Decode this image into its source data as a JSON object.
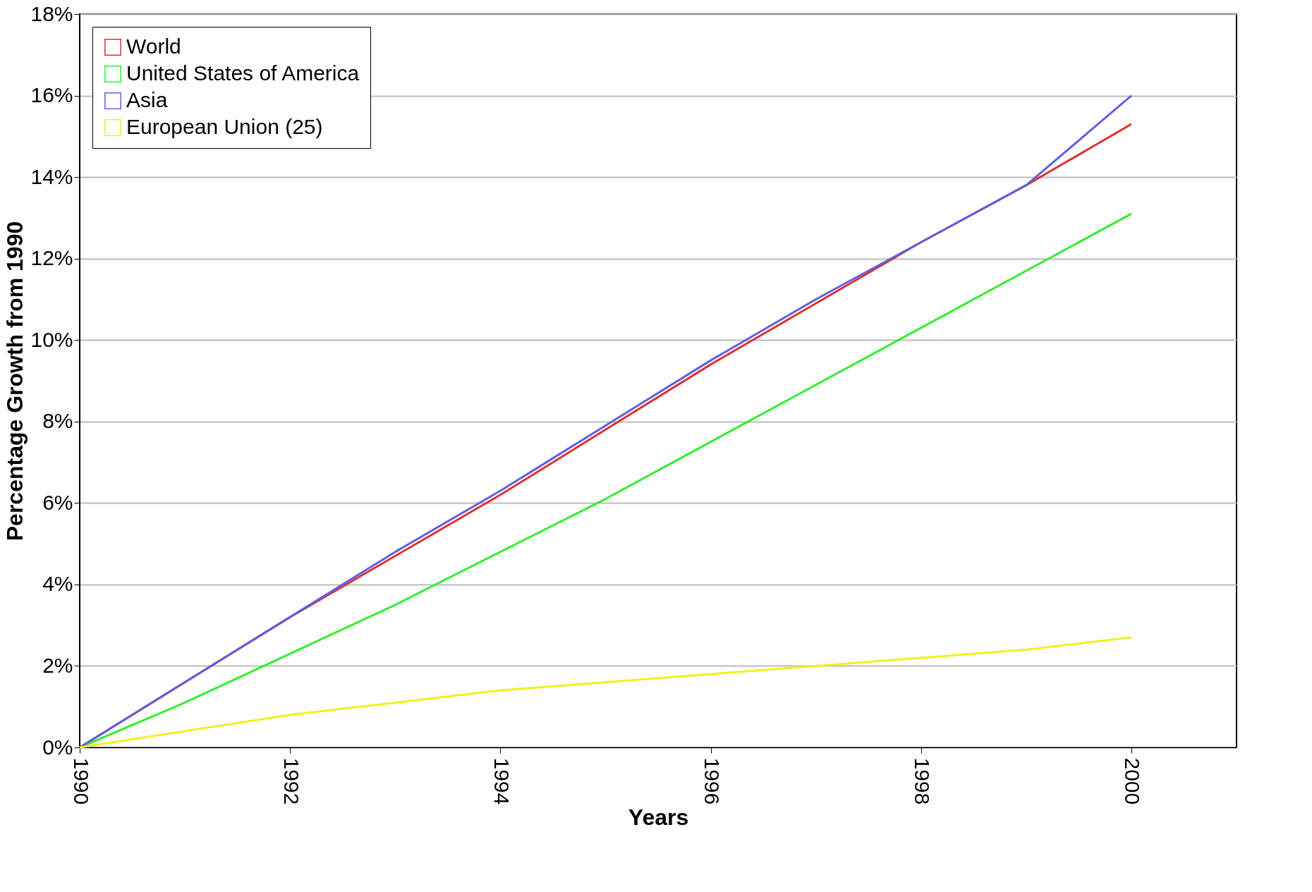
{
  "chart_data": {
    "type": "line",
    "xlabel": "Years",
    "ylabel": "Percentage Growth from 1990",
    "x": [
      1990,
      1991,
      1992,
      1993,
      1994,
      1995,
      1996,
      1997,
      1998,
      1999,
      2000
    ],
    "series": [
      {
        "name": "World",
        "color": "#e03030",
        "values": [
          0,
          1.6,
          3.2,
          4.7,
          6.2,
          7.8,
          9.4,
          10.9,
          12.4,
          13.8,
          15.3
        ]
      },
      {
        "name": "United States of America",
        "color": "#33ee33",
        "values": [
          0,
          1.1,
          2.3,
          3.5,
          4.8,
          6.1,
          7.5,
          8.9,
          10.3,
          11.7,
          13.1
        ]
      },
      {
        "name": "Asia",
        "color": "#6060e0",
        "values": [
          0,
          1.6,
          3.2,
          4.8,
          6.3,
          7.9,
          9.5,
          11.0,
          12.4,
          13.8,
          16.0
        ]
      },
      {
        "name": "European Union (25)",
        "color": "#f0f020",
        "values": [
          0,
          0.4,
          0.8,
          1.1,
          1.4,
          1.6,
          1.8,
          2.0,
          2.2,
          2.4,
          2.7
        ]
      }
    ],
    "xlim": [
      1990,
      2001
    ],
    "xticks": [
      1990,
      1992,
      1994,
      1996,
      1998,
      2000
    ],
    "ylim": [
      0,
      18
    ],
    "yticks": [
      {
        "value": 0,
        "label": "0%"
      },
      {
        "value": 2,
        "label": "2%"
      },
      {
        "value": 4,
        "label": "4%"
      },
      {
        "value": 6,
        "label": "6%"
      },
      {
        "value": 8,
        "label": "8%"
      },
      {
        "value": 10,
        "label": "10%"
      },
      {
        "value": 12,
        "label": "12%"
      },
      {
        "value": 14,
        "label": "14%"
      },
      {
        "value": 16,
        "label": "16%"
      },
      {
        "value": 18,
        "label": "18%"
      }
    ],
    "grid": "y",
    "legend": "top left",
    "marker": "none",
    "line_style": "solid"
  }
}
